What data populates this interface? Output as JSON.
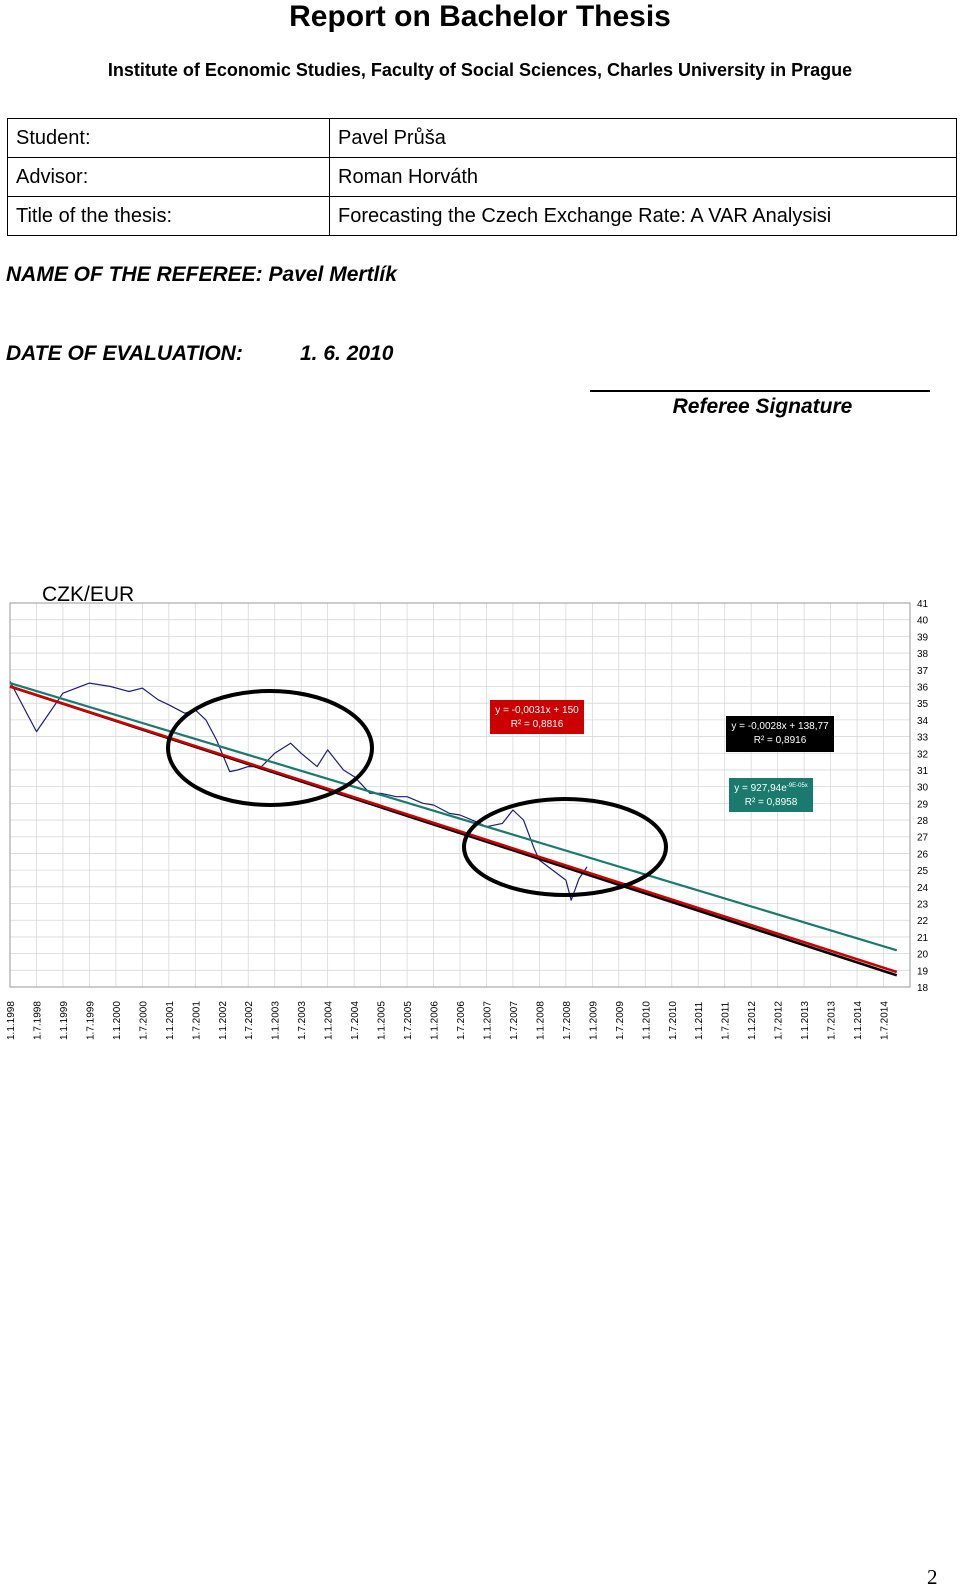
{
  "document": {
    "title": "Report on Bachelor Thesis",
    "subtitle": "Institute of Economic Studies, Faculty of Social Sciences, Charles University in Prague",
    "info": [
      {
        "label": "Student:",
        "value": "Pavel Průša"
      },
      {
        "label": "Advisor:",
        "value": "Roman Horváth"
      },
      {
        "label": "Title of the thesis:",
        "value": "Forecasting the Czech Exchange Rate: A VAR Analysisi"
      }
    ],
    "referee": "NAME OF THE REFEREE: Pavel Mertlík",
    "date_label": "DATE OF EVALUATION:",
    "date_value": "1. 6. 2010",
    "signature_label": "Referee Signature",
    "page_number": "2"
  },
  "chart_data": {
    "type": "line",
    "title": "CZK/EUR",
    "ylim": [
      18,
      41
    ],
    "y_ticks": [
      "41",
      "40",
      "39",
      "38",
      "37",
      "36",
      "35",
      "34",
      "33",
      "32",
      "31",
      "30",
      "29",
      "28",
      "27",
      "26",
      "25",
      "24",
      "23",
      "22",
      "21",
      "20",
      "19",
      "18"
    ],
    "x_ticks": [
      "1.1.1998",
      "1.7.1998",
      "1.1.1999",
      "1.7.1999",
      "1.1.2000",
      "1.7.2000",
      "1.1.2001",
      "1.7.2001",
      "1.1.2002",
      "1.7.2002",
      "1.1.2003",
      "1.7.2003",
      "1.1.2004",
      "1.7.2004",
      "1.1.2005",
      "1.7.2005",
      "1.1.2006",
      "1.7.2006",
      "1.1.2007",
      "1.7.2007",
      "1.1.2008",
      "1.7.2008",
      "1.1.2009",
      "1.7.2009",
      "1.1.2010",
      "1.7.2010",
      "1.1.2011",
      "1.7.2011",
      "1.1.2012",
      "1.7.2012",
      "1.1.2013",
      "1.7.2013",
      "1.1.2014",
      "1.7.2014"
    ],
    "grid": true,
    "series": [
      {
        "color": "#1a1f7a",
        "x": [
          0,
          1,
          2,
          3,
          3.8,
          4.5,
          5,
          5.6,
          6,
          6.6,
          7,
          7.4,
          7.8,
          8.3,
          8.6,
          9,
          9.5,
          10,
          10.6,
          11,
          11.6,
          12,
          12.6,
          13,
          13.6,
          14,
          14.6,
          15,
          15.6,
          16,
          16.6,
          17,
          17.6,
          18,
          18.6,
          19,
          19.4,
          19.8,
          20,
          20.5,
          21,
          21.2,
          21.5,
          21.8
        ],
        "values": [
          36.3,
          33.3,
          35.6,
          36.2,
          36.0,
          35.7,
          35.9,
          35.2,
          34.9,
          34.4,
          34.6,
          34.0,
          32.8,
          30.9,
          31.0,
          31.2,
          31.2,
          32.0,
          32.6,
          32.0,
          31.2,
          32.2,
          31.0,
          30.6,
          29.6,
          29.6,
          29.4,
          29.4,
          29.0,
          28.9,
          28.4,
          28.3,
          27.9,
          27.6,
          27.8,
          28.6,
          28.0,
          26.3,
          25.6,
          25.0,
          24.4,
          23.2,
          24.5,
          25.2
        ]
      },
      {
        "color": "#000000",
        "x": [
          0,
          33.5
        ],
        "values": [
          36.0,
          18.7
        ]
      },
      {
        "color": "#cc0000",
        "x": [
          0,
          33.5
        ],
        "values": [
          36.0,
          18.9
        ]
      },
      {
        "color": "#1a7a6e",
        "x": [
          0,
          33.5
        ],
        "values": [
          36.2,
          20.2
        ]
      }
    ],
    "annotations": [
      {
        "line1": "y = -0,0031x + 150",
        "line2": "R² = 0,8816",
        "color": "#cc0000"
      },
      {
        "line1": "y = -0,0028x + 138,77",
        "line2": "R² = 0,8916",
        "color": "#000000"
      },
      {
        "line1": "y = 927,94e",
        "sup": "-9E-05x",
        "line2": "R² = 0,8958",
        "color": "#1a7a6e"
      }
    ]
  }
}
